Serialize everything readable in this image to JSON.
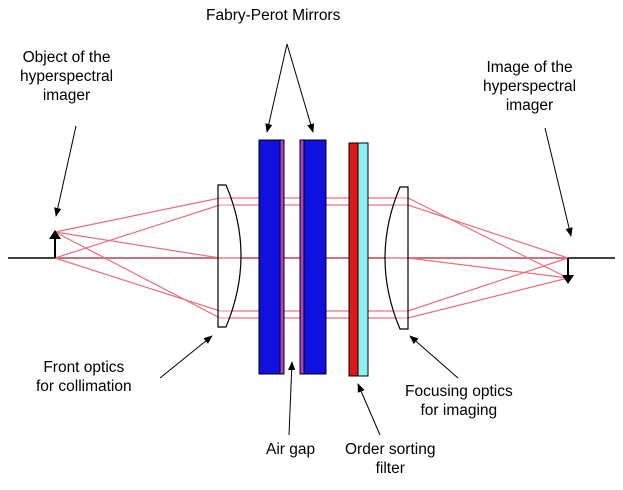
{
  "labels": {
    "fabry_perot": "Fabry-Perot Mirrors",
    "object": [
      "Object of the",
      "hyperspectral",
      "imager"
    ],
    "image": [
      "Image of the",
      "hyperspectral",
      "imager"
    ],
    "front_optics": [
      "Front optics",
      "for collimation"
    ],
    "focusing_optics": [
      "Focusing optics",
      "for imaging"
    ],
    "air_gap": "Air gap",
    "order_filter": [
      "Order sorting",
      "filter"
    ]
  },
  "colors": {
    "ray": "#e8707a",
    "mirror_blue": "#1010e0",
    "mirror_coating": "#b040c8",
    "filter_red": "#e01818",
    "filter_cyan": "#8ff0f0",
    "line": "#000000"
  }
}
